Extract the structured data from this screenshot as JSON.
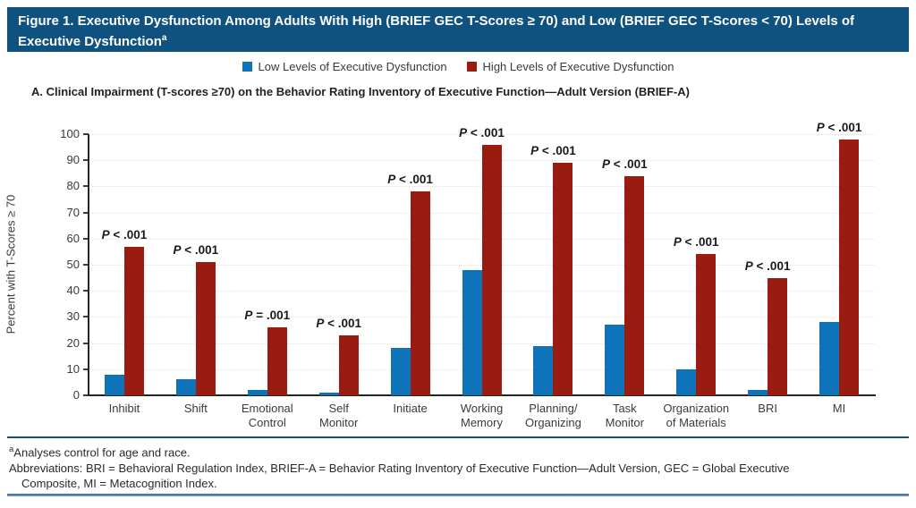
{
  "colors": {
    "title_bar": "#0F527F",
    "bar_low": "#0E73B9",
    "bar_high": "#9A1B10",
    "gridline": "#EDDEDE",
    "footnote_rule": "#1F4E79",
    "bottom_rule": "#35639B"
  },
  "figure": {
    "title": "Figure 1. Executive Dysfunction Among Adults With High (BRIEF GEC T-Scores ≥ 70) and Low (BRIEF GEC T-Scores < 70) Levels of Executive Dysfunction",
    "title_superscript": "a",
    "panel_label": "A. Clinical Impairment (T-scores ≥70) on the Behavior Rating Inventory of Executive Function—Adult Version (BRIEF-A)"
  },
  "legend": {
    "items": [
      {
        "label": "Low Levels of Executive Dysfunction",
        "color": "#0E73B9"
      },
      {
        "label": "High Levels of Executive Dysfunction",
        "color": "#9A1B10"
      }
    ]
  },
  "chart_data": {
    "type": "bar",
    "title": "A. Clinical Impairment (T-scores ≥70) on the Behavior Rating Inventory of Executive Function—Adult Version (BRIEF-A)",
    "ylabel": "Percent with T-Scores ≥ 70",
    "ylim": [
      0,
      100
    ],
    "ytick_step": 10,
    "grid": "horizontal-dotted",
    "legend_position": "top-center",
    "categories": [
      "Inhibit",
      "Shift",
      "Emotional\nControl",
      "Self\nMonitor",
      "Initiate",
      "Working\nMemory",
      "Planning/\nOrganizing",
      "Task\nMonitor",
      "Organization\nof Materials",
      "BRI",
      "MI"
    ],
    "series": [
      {
        "name": "Low Levels of Executive Dysfunction",
        "key": "low",
        "color": "#0E73B9",
        "values": [
          8,
          6,
          2,
          1,
          18,
          48,
          19,
          27,
          10,
          2,
          28
        ]
      },
      {
        "name": "High Levels of Executive Dysfunction",
        "key": "high",
        "color": "#9A1B10",
        "values": [
          57,
          51,
          26,
          23,
          78,
          96,
          89,
          84,
          54,
          45,
          98
        ]
      }
    ],
    "p_value_annotations": [
      "P < .001",
      "P < .001",
      "P = .001",
      "P < .001",
      "P < .001",
      "P < .001",
      "P < .001",
      "P < .001",
      "P < .001",
      "P < .001",
      "P < .001"
    ]
  },
  "footnote": {
    "marker": "a",
    "line1": "Analyses control for age and race.",
    "line2": "Abbreviations: BRI = Behavioral Regulation Index, BRIEF-A = Behavior Rating Inventory of Executive Function—Adult Version, GEC = Global Executive",
    "line3": "Composite, MI = Metacognition Index."
  }
}
